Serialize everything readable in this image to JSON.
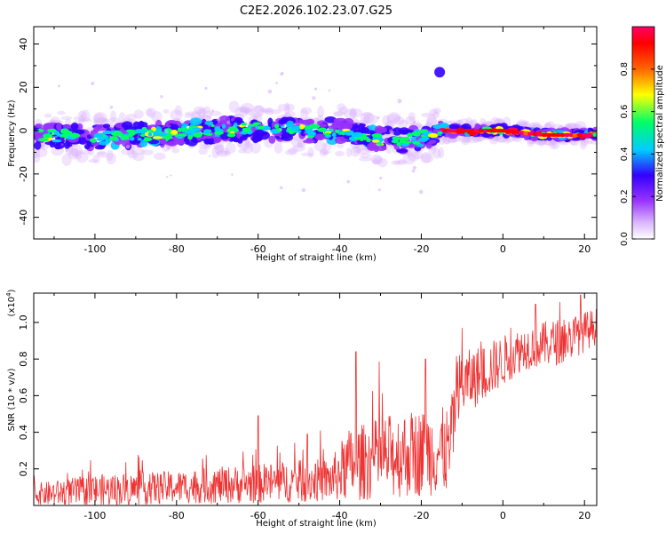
{
  "figure_title": "C2E2.2026.102.23.07.G25",
  "chart_data": [
    {
      "type": "heatmap",
      "title": "C2E2.2026.102.23.07.G25",
      "xlabel": "Height of straight line (km)",
      "ylabel": "Frequency (Hz)",
      "xlim": [
        -115,
        23
      ],
      "ylim": [
        -50,
        48
      ],
      "x_ticks": [
        -100,
        -80,
        -60,
        -40,
        -20,
        0,
        20
      ],
      "x_tick_labels": [
        "-100",
        "-80",
        "-60",
        "-40",
        "-20",
        "0",
        "20"
      ],
      "y_ticks": [
        -40,
        -20,
        0,
        20,
        40
      ],
      "y_tick_labels": [
        "-40",
        "-20",
        "0",
        "20",
        "40"
      ],
      "colorbar": {
        "label": "Normalized spectral amplitude",
        "range": [
          0,
          1
        ],
        "ticks": [
          0.0,
          0.2,
          0.4,
          0.6,
          0.8
        ],
        "tick_labels": [
          "0.0",
          "0.2",
          "0.4",
          "0.6",
          "0.8"
        ],
        "colors": [
          "#ffffff",
          "#d9b3ff",
          "#9933ff",
          "#3300ff",
          "#00ccff",
          "#00ff66",
          "#ffff00",
          "#ff6600",
          "#ff0000",
          "#ff0066"
        ]
      },
      "ridge": [
        {
          "x": -115,
          "freq": -2
        },
        {
          "x": -100,
          "freq": -3
        },
        {
          "x": -80,
          "freq": -1
        },
        {
          "x": -60,
          "freq": 1
        },
        {
          "x": -50,
          "freq": 0
        },
        {
          "x": -40,
          "freq": 0
        },
        {
          "x": -30,
          "freq": -4
        },
        {
          "x": -25,
          "freq": -5
        },
        {
          "x": -20,
          "freq": -3
        },
        {
          "x": -15,
          "freq": 0
        },
        {
          "x": 0,
          "freq": 0
        },
        {
          "x": 10,
          "freq": -2
        },
        {
          "x": 22,
          "freq": -2
        }
      ],
      "hotspots": [
        {
          "x": -15.5,
          "freq": 27,
          "amplitude": 0.3
        }
      ]
    },
    {
      "type": "line",
      "xlabel": "Height of straight line (km)",
      "ylabel": "SNR (10 * v/v)",
      "y_scale_note": "(x10",
      "y_scale_exponent": "4",
      "xlim": [
        -115,
        23
      ],
      "ylim": [
        0,
        1.16
      ],
      "x_ticks": [
        -100,
        -80,
        -60,
        -40,
        -20,
        0,
        20
      ],
      "x_tick_labels": [
        "-100",
        "-80",
        "-60",
        "-40",
        "-20",
        "0",
        "20"
      ],
      "y_ticks": [
        0.2,
        0.4,
        0.6,
        0.8,
        1.0
      ],
      "y_tick_labels": [
        "0.2",
        "0.4",
        "0.6",
        "0.8",
        "1.0"
      ],
      "line_color": "#ee3333",
      "envelope": [
        {
          "x": -115,
          "mean": 0.06,
          "amp": 0.06
        },
        {
          "x": -100,
          "mean": 0.08,
          "amp": 0.09
        },
        {
          "x": -80,
          "mean": 0.1,
          "amp": 0.09
        },
        {
          "x": -60,
          "mean": 0.12,
          "amp": 0.11
        },
        {
          "x": -42,
          "mean": 0.14,
          "amp": 0.12
        },
        {
          "x": -38,
          "mean": 0.22,
          "amp": 0.2
        },
        {
          "x": -25,
          "mean": 0.28,
          "amp": 0.24
        },
        {
          "x": -13,
          "mean": 0.3,
          "amp": 0.24
        },
        {
          "x": -11,
          "mean": 0.65,
          "amp": 0.18
        },
        {
          "x": -5,
          "mean": 0.72,
          "amp": 0.16
        },
        {
          "x": 5,
          "mean": 0.86,
          "amp": 0.12
        },
        {
          "x": 15,
          "mean": 0.9,
          "amp": 0.13
        },
        {
          "x": 23,
          "mean": 0.98,
          "amp": 0.1
        }
      ],
      "peaks": [
        {
          "x": -60,
          "y": 0.49
        },
        {
          "x": -48,
          "y": 0.39
        },
        {
          "x": -36,
          "y": 0.84
        },
        {
          "x": -19,
          "y": 0.8
        },
        {
          "x": -10,
          "y": 0.97
        },
        {
          "x": 8,
          "y": 1.1
        },
        {
          "x": 19,
          "y": 1.15
        }
      ]
    }
  ]
}
